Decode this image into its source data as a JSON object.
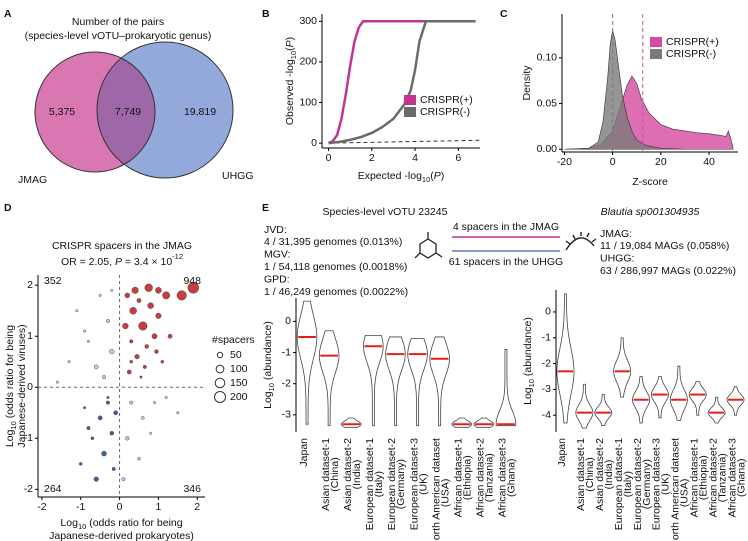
{
  "chart_data": [
    {
      "type": "venn",
      "panel": "A",
      "title": [
        "Number of the pairs",
        "(species-level vOTU–prokaryotic genus)"
      ],
      "sets": [
        {
          "name": "JMAG",
          "color": "#d877b2"
        },
        {
          "name": "UHGG",
          "color": "#93a9dc"
        }
      ],
      "overlap_color": "#9e68a8",
      "values": [
        5375,
        7749,
        19819
      ],
      "value_labels": [
        "5,375",
        "7,749",
        "19,819"
      ]
    },
    {
      "type": "line",
      "panel": "B",
      "xlabel": [
        {
          "text": "Expected -log"
        },
        {
          "text": "10",
          "style": "sub"
        },
        {
          "text": "("
        },
        {
          "text": "P",
          "style": "italic"
        },
        {
          "text": ")"
        }
      ],
      "ylabel": [
        {
          "text": "Observed -log"
        },
        {
          "text": "10",
          "style": "sub"
        },
        {
          "text": "("
        },
        {
          "text": "P",
          "style": "italic"
        },
        {
          "text": ")"
        }
      ],
      "xlim": [
        -0.3,
        7
      ],
      "xticks": [
        0,
        2,
        4,
        6
      ],
      "ylim": [
        -12,
        318
      ],
      "yticks": [
        0,
        100,
        200,
        300
      ],
      "legend": "right",
      "series": [
        {
          "name": "CRISPR(+)",
          "color": "#c2358e",
          "x": [
            0,
            0.2,
            0.4,
            0.6,
            0.8,
            1.0,
            1.2,
            1.4,
            1.6,
            1.8,
            2.5,
            3.5,
            5.0,
            6.5
          ],
          "y": [
            0,
            5,
            20,
            60,
            120,
            190,
            250,
            285,
            300,
            300,
            300,
            300,
            300,
            300
          ]
        },
        {
          "name": "CRISPR(-)",
          "color": "#6b6b6b",
          "x": [
            0,
            0.5,
            1,
            1.5,
            2,
            2.5,
            3,
            3.5,
            3.8,
            4.0,
            4.2,
            4.5,
            5,
            6,
            6.8
          ],
          "y": [
            0,
            3,
            8,
            15,
            25,
            40,
            60,
            95,
            130,
            180,
            250,
            300,
            300,
            300,
            300
          ]
        }
      ]
    },
    {
      "type": "area",
      "panel": "C",
      "xlabel": "Z-score",
      "ylabel": "Density",
      "xlim": [
        -21,
        52
      ],
      "xticks": [
        -20,
        0,
        20,
        40
      ],
      "ylim": [
        -0.003,
        0.148
      ],
      "yticks": [
        {
          "value": 0,
          "label": "0.00"
        },
        {
          "value": 0.05,
          "label": "0.05"
        },
        {
          "value": 0.1,
          "label": "0.10"
        }
      ],
      "legend": "top-right",
      "series": [
        {
          "name": "CRISPR(+)",
          "color": "#d64a9f",
          "median": 12.5,
          "x": [
            -20,
            -10,
            -5,
            0,
            3,
            6,
            8,
            10,
            12,
            15,
            20,
            25,
            30,
            35,
            40,
            45,
            47,
            48,
            49,
            50
          ],
          "y": [
            0,
            0.001,
            0.005,
            0.02,
            0.045,
            0.07,
            0.08,
            0.072,
            0.055,
            0.04,
            0.027,
            0.022,
            0.02,
            0.018,
            0.017,
            0.015,
            0.014,
            0.02,
            0.012,
            0
          ]
        },
        {
          "name": "CRISPR(-)",
          "color": "#7a7a7a",
          "median": 0,
          "x": [
            -20,
            -10,
            -6,
            -4,
            -2,
            -1,
            0,
            1,
            2,
            4,
            6,
            8,
            10,
            14,
            20,
            30,
            50
          ],
          "y": [
            0,
            0.001,
            0.008,
            0.03,
            0.08,
            0.115,
            0.13,
            0.12,
            0.1,
            0.06,
            0.035,
            0.02,
            0.01,
            0.004,
            0.001,
            0,
            0
          ]
        }
      ]
    },
    {
      "type": "scatter",
      "panel": "D",
      "title": "CRISPR spacers in the JMAG",
      "subtitle": [
        {
          "text": "OR = 2.05, "
        },
        {
          "text": "P",
          "style": "italic"
        },
        {
          "text": " = 3.4 × 10"
        },
        {
          "text": "-12",
          "style": "sup"
        }
      ],
      "xlabel": [
        [
          {
            "text": "Log"
          },
          {
            "text": "10",
            "style": "sub"
          },
          {
            "text": " (odds ratio for being"
          }
        ],
        [
          {
            "text": "Japanese-derived prokaryotes)"
          }
        ]
      ],
      "ylabel": [
        [
          {
            "text": "Log"
          },
          {
            "text": "10",
            "style": "sub"
          },
          {
            "text": " (odds ratio for being"
          }
        ],
        [
          {
            "text": "Japanese-derived viruses)"
          }
        ]
      ],
      "xlim": [
        -2.1,
        2.2
      ],
      "xticks": [
        -2,
        -1,
        0,
        1,
        2
      ],
      "ylim": [
        -2.15,
        2.2
      ],
      "yticks": [
        -2,
        -1,
        0,
        1,
        2
      ],
      "quadrant_counts": [
        352,
        948,
        264,
        346
      ],
      "quadrant_colors": [
        "#8fa6d9",
        "#c0282d",
        "#2c4f8c",
        "#8fa6d9"
      ],
      "colors": {
        "both_positive": "#c0282d",
        "both_negative": "#2c4f8c",
        "other": "#bdbde0"
      },
      "size_legend": {
        "title": "#spacers",
        "values": [
          50,
          100,
          150,
          200
        ]
      },
      "points": {
        "x": [
          0.2,
          0.35,
          0.5,
          0.6,
          0.8,
          1.0,
          1.2,
          0.3,
          0.45,
          0.7,
          0.9,
          1.1,
          0.25,
          0.55,
          0.15,
          1.3,
          0.4,
          0.75,
          1.6,
          1.9,
          1.0,
          0.65,
          0.95,
          0.3,
          -0.3,
          -0.5,
          -0.2,
          -0.7,
          -0.4,
          -0.9,
          -0.15,
          -0.6,
          -1.0,
          -0.3,
          -0.8,
          -0.1,
          -0.5,
          -0.3,
          -0.8,
          -1.3,
          -0.6,
          -0.2,
          -1.1,
          -0.4,
          -1.6,
          0.3,
          0.6,
          0.2,
          0.9,
          0.5,
          1.2,
          0.1,
          0.8,
          -0.9,
          -0.2,
          1.5
        ],
        "y": [
          1.8,
          1.5,
          1.7,
          1.2,
          1.6,
          1.4,
          1.8,
          0.9,
          0.6,
          0.8,
          1.0,
          0.5,
          0.3,
          0.2,
          1.2,
          1.0,
          1.9,
          1.95,
          1.8,
          1.95,
          1.9,
          0.4,
          0.7,
          0.5,
          -0.3,
          -0.6,
          -0.9,
          -1.0,
          -1.3,
          -0.4,
          -1.6,
          -1.8,
          -1.5,
          -0.2,
          -0.8,
          -0.5,
          1.8,
          1.3,
          0.9,
          0.5,
          0.4,
          0.7,
          1.5,
          0.2,
          0.1,
          -0.3,
          -0.6,
          -1.0,
          -0.3,
          -1.4,
          -0.2,
          -1.8,
          -0.9,
          1.1,
          1.9,
          -0.5
        ],
        "size": [
          40,
          80,
          30,
          120,
          60,
          50,
          90,
          20,
          35,
          25,
          45,
          15,
          30,
          10,
          55,
          30,
          70,
          100,
          150,
          200,
          60,
          20,
          25,
          15,
          20,
          30,
          25,
          15,
          40,
          10,
          20,
          35,
          15,
          10,
          20,
          30,
          10,
          20,
          10,
          10,
          30,
          40,
          10,
          20,
          10,
          20,
          15,
          25,
          10,
          15,
          10,
          20,
          10,
          10,
          10,
          10
        ]
      }
    },
    {
      "type": "violin",
      "panel": "E",
      "title": "Species-level vOTU 23245",
      "notes": [
        "JVD:",
        "4 / 31,395  genomes (0.013%)",
        "MGV:",
        "1 / 54,118 genomes (0.0018%)",
        "GPD:",
        "1 / 46,249 genomes (0.0022%)"
      ],
      "links": [
        {
          "text": "4 spacers in the JMAG",
          "color": "#c2358e"
        },
        {
          "text": "61 spacers in the UHGG",
          "color": "#5a78c4"
        }
      ],
      "ylabel": [
        {
          "text": "Log"
        },
        {
          "text": "10",
          "style": "sub"
        },
        {
          "text": " (abundance)"
        }
      ],
      "categories": [
        "Japan",
        "Asian dataset-1",
        "Asian dataset-2",
        "European dataset-1",
        "European dataset-2",
        "European dataset-3",
        "North American dataset",
        "African dataset-1",
        "African dataset-2",
        "African dataset-3"
      ],
      "sublabels": [
        null,
        "(China)",
        "(India)",
        "(Italy)",
        "(Germany)",
        "(UK)",
        "(USA)",
        "(Ethiopia)",
        "(Tanzania)",
        "(Ghana)"
      ],
      "category_colors": [
        "#000000",
        "#2e2e9a",
        "#2e2e9a",
        "#4c9b2f",
        "#4c9b2f",
        "#4c9b2f",
        "#a8205f",
        "#e09b2a",
        "#e09b2a",
        "#e09b2a"
      ],
      "median_color": "#e0201b",
      "values": [
        -0.5,
        -1.1,
        -3.3,
        -0.8,
        -1.05,
        -1.05,
        -1.2,
        -3.3,
        -3.3,
        -3.3
      ],
      "ranges": [
        [
          -3.3,
          0.65
        ],
        [
          -3.35,
          -0.3
        ],
        [
          -3.4,
          -3.1
        ],
        [
          -3.35,
          -0.45
        ],
        [
          -3.35,
          -0.5
        ],
        [
          -3.35,
          -0.55
        ],
        [
          -3.35,
          -0.5
        ],
        [
          -3.4,
          -3.1
        ],
        [
          -3.4,
          -3.1
        ],
        [
          -3.35,
          -0.9
        ]
      ],
      "ylim": [
        -3.55,
        0.75
      ],
      "yticks": [
        0,
        -1,
        -2,
        -3
      ]
    },
    {
      "type": "violin",
      "title": "Blautia sp001304935",
      "title_style": "italic",
      "notes": [
        "JMAG:",
        "11 / 19,084 MAGs (0.058%)",
        "UHGG:",
        "63 / 286,997 MAGs (0.022%)"
      ],
      "ylabel": [
        {
          "text": "Log"
        },
        {
          "text": "10",
          "style": "sub"
        },
        {
          "text": " (abundance)"
        }
      ],
      "categories": [
        "Japan",
        "Asian dataset-1",
        "Asian dataset-2",
        "European dataset-1",
        "European dataset-2",
        "European dataset-3",
        "North American dataset",
        "African dataset-1",
        "African dataset-2",
        "African dataset-3"
      ],
      "sublabels": [
        null,
        "(China)",
        "(India)",
        "(Italy)",
        "(Germany)",
        "(UK)",
        "(USA)",
        "(Ethiopia)",
        "(Tanzania)",
        "(Ghana)"
      ],
      "category_colors": [
        "#000000",
        "#2e2e9a",
        "#2e2e9a",
        "#4c9b2f",
        "#4c9b2f",
        "#4c9b2f",
        "#a8205f",
        "#e09b2a",
        "#e09b2a",
        "#e09b2a"
      ],
      "median_color": "#e0201b",
      "values": [
        -2.3,
        -3.9,
        -3.9,
        -2.3,
        -3.4,
        -3.2,
        -3.4,
        -3.2,
        -3.9,
        -3.4
      ],
      "ranges": [
        [
          -4.3,
          0.7
        ],
        [
          -4.5,
          -2.8
        ],
        [
          -4.4,
          -3.2
        ],
        [
          -3.3,
          -1.0
        ],
        [
          -4.3,
          -2.5
        ],
        [
          -4.1,
          -2.5
        ],
        [
          -4.2,
          -2.1
        ],
        [
          -4.0,
          -2.7
        ],
        [
          -4.3,
          -3.3
        ],
        [
          -4.0,
          -2.9
        ]
      ],
      "ylim": [
        -4.65,
        0.85
      ],
      "yticks": [
        0,
        -1,
        -2,
        -3,
        -4
      ]
    }
  ]
}
